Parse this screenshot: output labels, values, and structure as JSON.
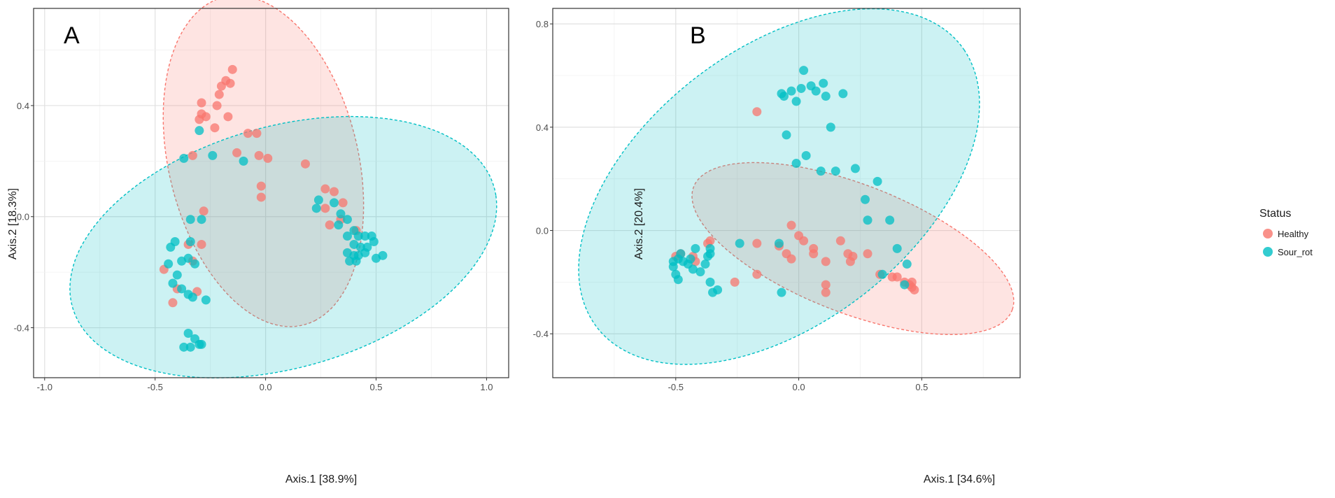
{
  "chart_data": [
    {
      "type": "scatter",
      "panel_label": "A",
      "xlabel": "Axis.1   [38.9%]",
      "ylabel": "Axis.2   [18.3%]",
      "xlim": [
        -1.05,
        1.1
      ],
      "ylim": [
        -0.58,
        0.75
      ],
      "xticks": [
        -1.0,
        -0.5,
        0.0,
        0.5,
        1.0
      ],
      "xtick_labels": [
        "-1.0",
        "-0.5",
        "0.0",
        "0.5",
        "1.0"
      ],
      "yticks": [
        0.4,
        0.0,
        -0.4
      ],
      "ytick_labels": [
        "0.4",
        "0.0",
        "-0.4"
      ],
      "grid": true,
      "ellipses": [
        {
          "group": "Healthy",
          "cx": -0.01,
          "cy": 0.2,
          "rx": 0.62,
          "ry": 0.42,
          "angle_deg": -68
        },
        {
          "group": "Sour_rot",
          "cx": 0.08,
          "cy": -0.11,
          "rx": 0.98,
          "ry": 0.44,
          "angle_deg": 11
        }
      ],
      "series": [
        {
          "name": "Healthy",
          "color": "#F8766D",
          "points": [
            [
              -0.15,
              0.53
            ],
            [
              -0.18,
              0.49
            ],
            [
              -0.2,
              0.47
            ],
            [
              -0.16,
              0.48
            ],
            [
              -0.21,
              0.44
            ],
            [
              -0.29,
              0.41
            ],
            [
              -0.22,
              0.4
            ],
            [
              -0.27,
              0.36
            ],
            [
              -0.3,
              0.35
            ],
            [
              -0.29,
              0.37
            ],
            [
              -0.17,
              0.36
            ],
            [
              -0.23,
              0.32
            ],
            [
              -0.08,
              0.3
            ],
            [
              -0.04,
              0.3
            ],
            [
              -0.33,
              0.22
            ],
            [
              -0.13,
              0.23
            ],
            [
              -0.03,
              0.22
            ],
            [
              0.01,
              0.21
            ],
            [
              0.18,
              0.19
            ],
            [
              -0.02,
              0.11
            ],
            [
              -0.02,
              0.07
            ],
            [
              0.27,
              0.1
            ],
            [
              0.31,
              0.09
            ],
            [
              0.27,
              0.03
            ],
            [
              0.35,
              0.05
            ],
            [
              0.29,
              -0.03
            ],
            [
              0.34,
              -0.01
            ],
            [
              0.41,
              -0.05
            ],
            [
              -0.28,
              0.02
            ],
            [
              -0.35,
              -0.1
            ],
            [
              -0.29,
              -0.1
            ],
            [
              -0.33,
              -0.16
            ],
            [
              -0.46,
              -0.19
            ],
            [
              -0.4,
              -0.26
            ],
            [
              -0.31,
              -0.27
            ],
            [
              -0.42,
              -0.31
            ]
          ]
        },
        {
          "name": "Sour_rot",
          "color": "#00BFC4",
          "points": [
            [
              -0.3,
              0.31
            ],
            [
              -0.24,
              0.22
            ],
            [
              -0.37,
              0.21
            ],
            [
              -0.1,
              0.2
            ],
            [
              0.24,
              0.06
            ],
            [
              0.23,
              0.03
            ],
            [
              0.31,
              0.05
            ],
            [
              0.34,
              0.01
            ],
            [
              0.37,
              -0.01
            ],
            [
              0.33,
              -0.03
            ],
            [
              0.37,
              -0.07
            ],
            [
              0.4,
              -0.05
            ],
            [
              0.42,
              -0.07
            ],
            [
              0.45,
              -0.07
            ],
            [
              0.48,
              -0.07
            ],
            [
              0.49,
              -0.09
            ],
            [
              0.4,
              -0.1
            ],
            [
              0.46,
              -0.11
            ],
            [
              0.43,
              -0.11
            ],
            [
              0.37,
              -0.13
            ],
            [
              0.4,
              -0.14
            ],
            [
              0.45,
              -0.13
            ],
            [
              0.38,
              -0.16
            ],
            [
              0.41,
              -0.16
            ],
            [
              0.42,
              -0.14
            ],
            [
              0.5,
              -0.15
            ],
            [
              0.53,
              -0.14
            ],
            [
              -0.34,
              -0.01
            ],
            [
              -0.29,
              -0.01
            ],
            [
              -0.34,
              -0.09
            ],
            [
              -0.43,
              -0.11
            ],
            [
              -0.41,
              -0.09
            ],
            [
              -0.35,
              -0.15
            ],
            [
              -0.38,
              -0.16
            ],
            [
              -0.44,
              -0.17
            ],
            [
              -0.32,
              -0.17
            ],
            [
              -0.4,
              -0.21
            ],
            [
              -0.42,
              -0.24
            ],
            [
              -0.38,
              -0.26
            ],
            [
              -0.35,
              -0.28
            ],
            [
              -0.33,
              -0.29
            ],
            [
              -0.27,
              -0.3
            ],
            [
              -0.35,
              -0.42
            ],
            [
              -0.32,
              -0.44
            ],
            [
              -0.3,
              -0.46
            ],
            [
              -0.29,
              -0.46
            ],
            [
              -0.37,
              -0.47
            ],
            [
              -0.34,
              -0.47
            ]
          ]
        }
      ]
    },
    {
      "type": "scatter",
      "panel_label": "B",
      "xlabel": "Axis.1   [34.6%]",
      "ylabel": "Axis.2   [20.4%]",
      "xlim": [
        -1.0,
        0.9
      ],
      "ylim": [
        -0.57,
        0.86
      ],
      "xticks": [
        -0.5,
        0.0,
        0.5
      ],
      "xtick_labels": [
        "-0.5",
        "0.0",
        "0.5"
      ],
      "yticks": [
        0.8,
        0.4,
        0.0,
        -0.4
      ],
      "ytick_labels": [
        "0.8",
        "0.4",
        "0.0",
        "-0.4"
      ],
      "grid": true,
      "ellipses": [
        {
          "group": "Healthy",
          "cx": 0.22,
          "cy": -0.07,
          "rx": 0.69,
          "ry": 0.25,
          "angle_deg": -20
        },
        {
          "group": "Sour_rot",
          "cx": -0.08,
          "cy": 0.17,
          "rx": 0.92,
          "ry": 0.54,
          "angle_deg": 35
        }
      ],
      "series": [
        {
          "name": "Healthy",
          "color": "#F8766D",
          "points": [
            [
              -0.5,
              -0.1
            ],
            [
              -0.48,
              -0.09
            ],
            [
              -0.43,
              -0.1
            ],
            [
              -0.42,
              -0.12
            ],
            [
              -0.37,
              -0.05
            ],
            [
              -0.36,
              -0.04
            ],
            [
              -0.26,
              -0.2
            ],
            [
              -0.17,
              -0.17
            ],
            [
              -0.17,
              -0.05
            ],
            [
              -0.08,
              -0.06
            ],
            [
              -0.05,
              -0.09
            ],
            [
              -0.03,
              -0.11
            ],
            [
              -0.03,
              0.02
            ],
            [
              0.0,
              -0.02
            ],
            [
              0.02,
              -0.04
            ],
            [
              0.06,
              -0.07
            ],
            [
              0.06,
              -0.09
            ],
            [
              0.11,
              -0.12
            ],
            [
              0.11,
              -0.21
            ],
            [
              0.11,
              -0.24
            ],
            [
              0.17,
              -0.04
            ],
            [
              0.2,
              -0.09
            ],
            [
              0.21,
              -0.12
            ],
            [
              0.22,
              -0.1
            ],
            [
              0.28,
              -0.09
            ],
            [
              0.33,
              -0.17
            ],
            [
              0.38,
              -0.18
            ],
            [
              0.4,
              -0.18
            ],
            [
              0.43,
              -0.2
            ],
            [
              0.45,
              -0.21
            ],
            [
              0.46,
              -0.22
            ],
            [
              0.47,
              -0.23
            ],
            [
              0.46,
              -0.2
            ],
            [
              -0.17,
              0.46
            ]
          ]
        },
        {
          "name": "Sour_rot",
          "color": "#00BFC4",
          "points": [
            [
              0.02,
              0.62
            ],
            [
              0.05,
              0.56
            ],
            [
              0.1,
              0.57
            ],
            [
              0.01,
              0.55
            ],
            [
              -0.03,
              0.54
            ],
            [
              -0.07,
              0.53
            ],
            [
              -0.06,
              0.52
            ],
            [
              0.07,
              0.54
            ],
            [
              0.11,
              0.52
            ],
            [
              0.18,
              0.53
            ],
            [
              -0.01,
              0.5
            ],
            [
              0.13,
              0.4
            ],
            [
              -0.05,
              0.37
            ],
            [
              0.03,
              0.29
            ],
            [
              -0.01,
              0.26
            ],
            [
              0.09,
              0.23
            ],
            [
              0.15,
              0.23
            ],
            [
              0.23,
              0.24
            ],
            [
              0.32,
              0.19
            ],
            [
              0.27,
              0.12
            ],
            [
              0.28,
              0.04
            ],
            [
              0.37,
              0.04
            ],
            [
              0.4,
              -0.07
            ],
            [
              0.44,
              -0.13
            ],
            [
              0.34,
              -0.17
            ],
            [
              0.43,
              -0.21
            ],
            [
              -0.24,
              -0.05
            ],
            [
              -0.08,
              -0.05
            ],
            [
              -0.36,
              -0.07
            ],
            [
              -0.36,
              -0.09
            ],
            [
              -0.42,
              -0.07
            ],
            [
              -0.44,
              -0.11
            ],
            [
              -0.48,
              -0.09
            ],
            [
              -0.51,
              -0.12
            ],
            [
              -0.49,
              -0.11
            ],
            [
              -0.47,
              -0.12
            ],
            [
              -0.51,
              -0.14
            ],
            [
              -0.45,
              -0.13
            ],
            [
              -0.38,
              -0.13
            ],
            [
              -0.4,
              -0.16
            ],
            [
              -0.43,
              -0.15
            ],
            [
              -0.5,
              -0.17
            ],
            [
              -0.49,
              -0.19
            ],
            [
              -0.36,
              -0.2
            ],
            [
              -0.35,
              -0.24
            ],
            [
              -0.33,
              -0.23
            ],
            [
              -0.07,
              -0.24
            ],
            [
              -0.37,
              -0.1
            ]
          ]
        }
      ]
    }
  ],
  "legend": {
    "title": "Status",
    "items": [
      {
        "label": "Healthy",
        "color": "#F8766D"
      },
      {
        "label": "Sour_rot",
        "color": "#00BFC4"
      }
    ]
  }
}
